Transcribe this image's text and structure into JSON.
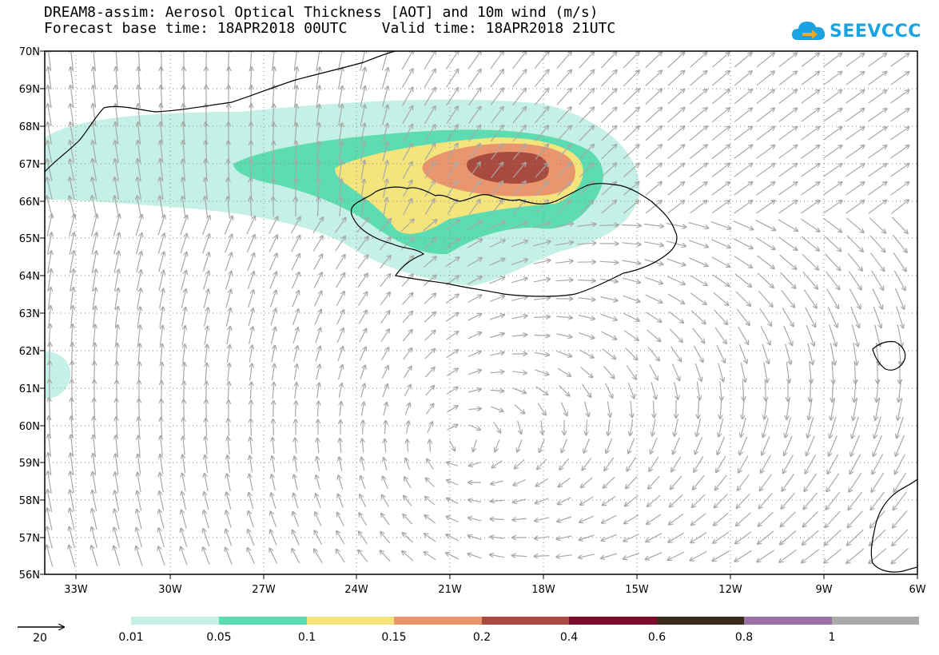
{
  "title": {
    "line1": "DREAM8-assim: Aerosol Optical Thickness [AOT] and 10m wind (m/s)",
    "line2": "Forecast base time: 18APR2018 00UTC    Valid time: 18APR2018 21UTC"
  },
  "logo": {
    "text": "SEEVCCC",
    "icon": "cloud-arrow-icon",
    "color": "#1aa3e0"
  },
  "map": {
    "lon_ticks": [
      "33W",
      "30W",
      "27W",
      "24W",
      "21W",
      "18W",
      "15W",
      "12W",
      "9W",
      "6W"
    ],
    "lat_ticks": [
      "70N",
      "69N",
      "68N",
      "67N",
      "66N",
      "65N",
      "64N",
      "63N",
      "62N",
      "61N",
      "60N",
      "59N",
      "58N",
      "57N",
      "56N"
    ],
    "lon_range": [
      -34.0,
      -6.0
    ],
    "lat_range": [
      56.0,
      70.0
    ],
    "grid": true
  },
  "wind_reference": {
    "label": "20",
    "units": "m/s"
  },
  "legend": {
    "labels": [
      "0.01",
      "0.05",
      "0.1",
      "0.15",
      "0.2",
      "0.4",
      "0.6",
      "0.8",
      "1"
    ],
    "colors": [
      "#c4f0e6",
      "#5cdcb0",
      "#f4e47c",
      "#e9966f",
      "#a94a3e",
      "#7a0c2c",
      "#3a2a1a",
      "#9a72a8",
      "#aaaaaa"
    ]
  }
}
